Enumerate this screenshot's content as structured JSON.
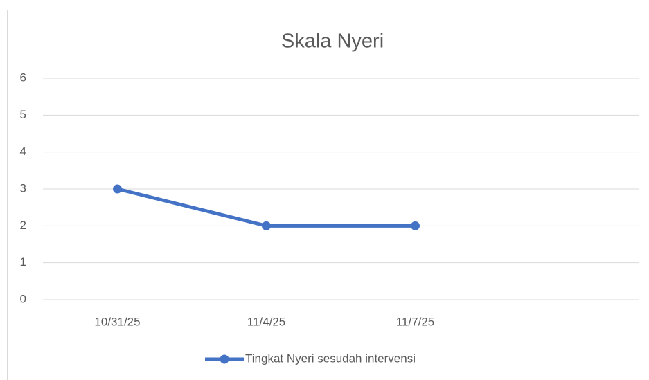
{
  "chart_data": {
    "type": "line",
    "title": "Skala Nyeri",
    "categories": [
      "10/31/25",
      "11/4/25",
      "11/7/25",
      null
    ],
    "series": [
      {
        "name": "Tingkat Nyeri sesudah intervensi",
        "color": "#4472c4",
        "values": [
          3,
          2,
          2,
          null
        ]
      }
    ],
    "ylim": [
      0,
      6
    ],
    "yticks": [
      0,
      1,
      2,
      3,
      4,
      5,
      6
    ],
    "grid": true,
    "legend": "bottom"
  }
}
